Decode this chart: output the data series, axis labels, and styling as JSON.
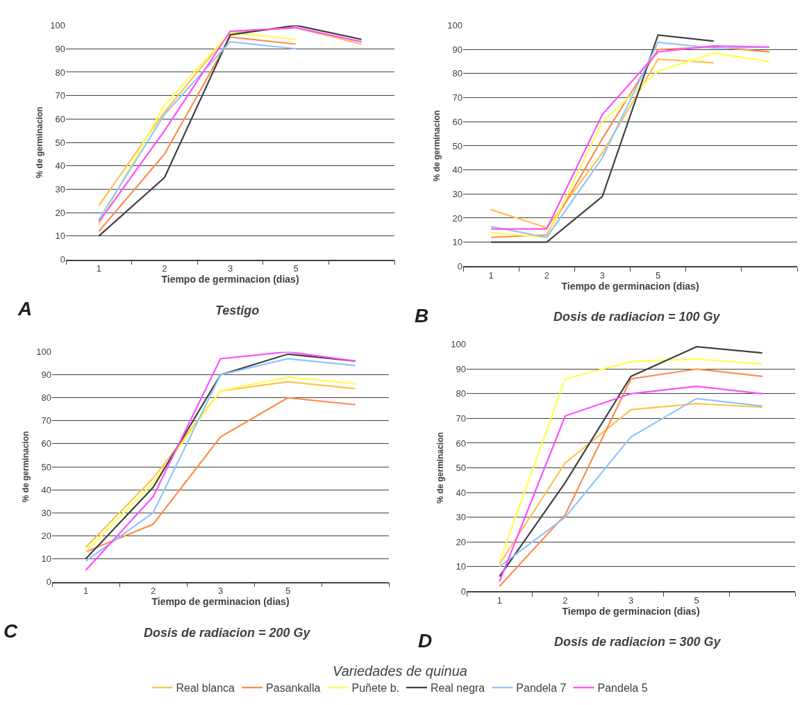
{
  "chart_data": [
    {
      "type": "line",
      "title": "Testigo",
      "xlabel": "Tiempo de germinacion (dias)",
      "ylabel": "% de germinacion",
      "annotations": [
        "A"
      ],
      "grid": "y",
      "legend": "bottom",
      "legend_title": "Variedades de quinua",
      "marker": "none",
      "line_style": "solid",
      "categories": [
        "1",
        "2",
        "3",
        "5",
        null
      ],
      "ylim": [
        0,
        100
      ],
      "yticks": [
        0,
        10,
        20,
        30,
        40,
        50,
        60,
        70,
        80,
        90,
        100
      ],
      "series": [
        {
          "name": "Real blanca",
          "color": "#ffc34d",
          "values": [
            23,
            63,
            97,
            99,
            92
          ]
        },
        {
          "name": "Pasankalla",
          "color": "#ff8c4d",
          "values": [
            12,
            45,
            95,
            92,
            null
          ]
        },
        {
          "name": "Puñete b.",
          "color": "#ffff4d",
          "values": [
            15,
            66,
            97,
            94,
            null
          ]
        },
        {
          "name": "Real negra",
          "color": "#404040",
          "values": [
            10,
            35,
            96,
            100,
            94
          ]
        },
        {
          "name": "Pandela 7",
          "color": "#8fc4ff",
          "values": [
            17,
            62,
            93,
            90,
            null
          ]
        },
        {
          "name": "Pandela 5",
          "color": "#ff4dff",
          "values": [
            16,
            55,
            97.5,
            99,
            93
          ]
        }
      ]
    },
    {
      "type": "line",
      "title": "Dosis de radiacion = 100 Gy",
      "xlabel": "Tiempo de germinacion (dias)",
      "ylabel": "% de germinacion",
      "annotations": [
        "B"
      ],
      "grid": "y",
      "legend": "bottom",
      "marker": "none",
      "line_style": "solid",
      "categories": [
        "1",
        "2",
        "3",
        "5",
        null,
        null
      ],
      "ylim": [
        0,
        100
      ],
      "yticks": [
        0,
        10,
        20,
        30,
        40,
        50,
        60,
        70,
        80,
        90,
        100
      ],
      "series": [
        {
          "name": "Real blanca",
          "color": "#ffc34d",
          "values": [
            23.5,
            16,
            47,
            86,
            84.5,
            null
          ]
        },
        {
          "name": "Pasankalla",
          "color": "#ff8c4d",
          "values": [
            12,
            13,
            53,
            90,
            91,
            89
          ]
        },
        {
          "name": "Puñete b.",
          "color": "#ffff4d",
          "values": [
            14,
            12,
            60,
            81,
            88.5,
            85
          ]
        },
        {
          "name": "Real negra",
          "color": "#404040",
          "values": [
            10,
            10,
            29,
            96,
            93.5,
            null
          ]
        },
        {
          "name": "Pandela 7",
          "color": "#8fc4ff",
          "values": [
            16.5,
            12,
            45,
            93,
            90.5,
            91
          ]
        },
        {
          "name": "Pandela 5",
          "color": "#ff4dff",
          "values": [
            15.5,
            15.5,
            63,
            89,
            91.5,
            91
          ]
        }
      ]
    },
    {
      "type": "line",
      "title": "Dosis de radiacion = 200 Gy",
      "xlabel": "Tiempo de germinacion (dias)",
      "ylabel": "% de germinacion",
      "annotations": [
        "C"
      ],
      "grid": "y",
      "legend": "bottom",
      "marker": "none",
      "line_style": "solid",
      "categories": [
        "1",
        "2",
        "3",
        "5",
        null
      ],
      "ylim": [
        0,
        100
      ],
      "yticks": [
        0,
        10,
        20,
        30,
        40,
        50,
        60,
        70,
        80,
        90,
        100
      ],
      "series": [
        {
          "name": "Real blanca",
          "color": "#ffc34d",
          "values": [
            15,
            45,
            83,
            87,
            84
          ]
        },
        {
          "name": "Pasankalla",
          "color": "#ff8c4d",
          "values": [
            13,
            25,
            63,
            80,
            77
          ]
        },
        {
          "name": "Puñete b.",
          "color": "#ffff4d",
          "values": [
            13,
            43,
            83,
            89,
            86
          ]
        },
        {
          "name": "Real negra",
          "color": "#404040",
          "values": [
            10,
            41,
            90,
            99,
            96
          ]
        },
        {
          "name": "Pandela 7",
          "color": "#8fc4ff",
          "values": [
            9,
            30,
            90,
            97,
            94
          ]
        },
        {
          "name": "Pandela 5",
          "color": "#ff4dff",
          "values": [
            5,
            37,
            97,
            100,
            96
          ]
        }
      ]
    },
    {
      "type": "line",
      "title": "Dosis de radiacion = 300 Gy",
      "xlabel": "Tiempo de germinacion (dias)",
      "ylabel": "% de germinacion",
      "annotations": [
        "D"
      ],
      "grid": "y",
      "legend": "bottom",
      "marker": "none",
      "line_style": "solid",
      "categories": [
        "1",
        "2",
        "3",
        "5",
        null
      ],
      "ylim": [
        0,
        100
      ],
      "yticks": [
        0,
        10,
        20,
        30,
        40,
        50,
        60,
        70,
        80,
        90,
        100
      ],
      "series": [
        {
          "name": "Real blanca",
          "color": "#ffc34d",
          "values": [
            11,
            52,
            73.5,
            76,
            74.5
          ]
        },
        {
          "name": "Pasankalla",
          "color": "#ff8c4d",
          "values": [
            2,
            31,
            86,
            90,
            87
          ]
        },
        {
          "name": "Puñete b.",
          "color": "#ffff4d",
          "values": [
            12,
            86,
            93,
            94,
            92
          ]
        },
        {
          "name": "Real negra",
          "color": "#404040",
          "values": [
            6,
            44,
            87,
            99,
            96.5
          ]
        },
        {
          "name": "Pandela 7",
          "color": "#8fc4ff",
          "values": [
            10,
            30,
            62.5,
            78,
            75
          ]
        },
        {
          "name": "Pandela 5",
          "color": "#ff4dff",
          "values": [
            4,
            71,
            80,
            83,
            80
          ]
        }
      ]
    }
  ]
}
